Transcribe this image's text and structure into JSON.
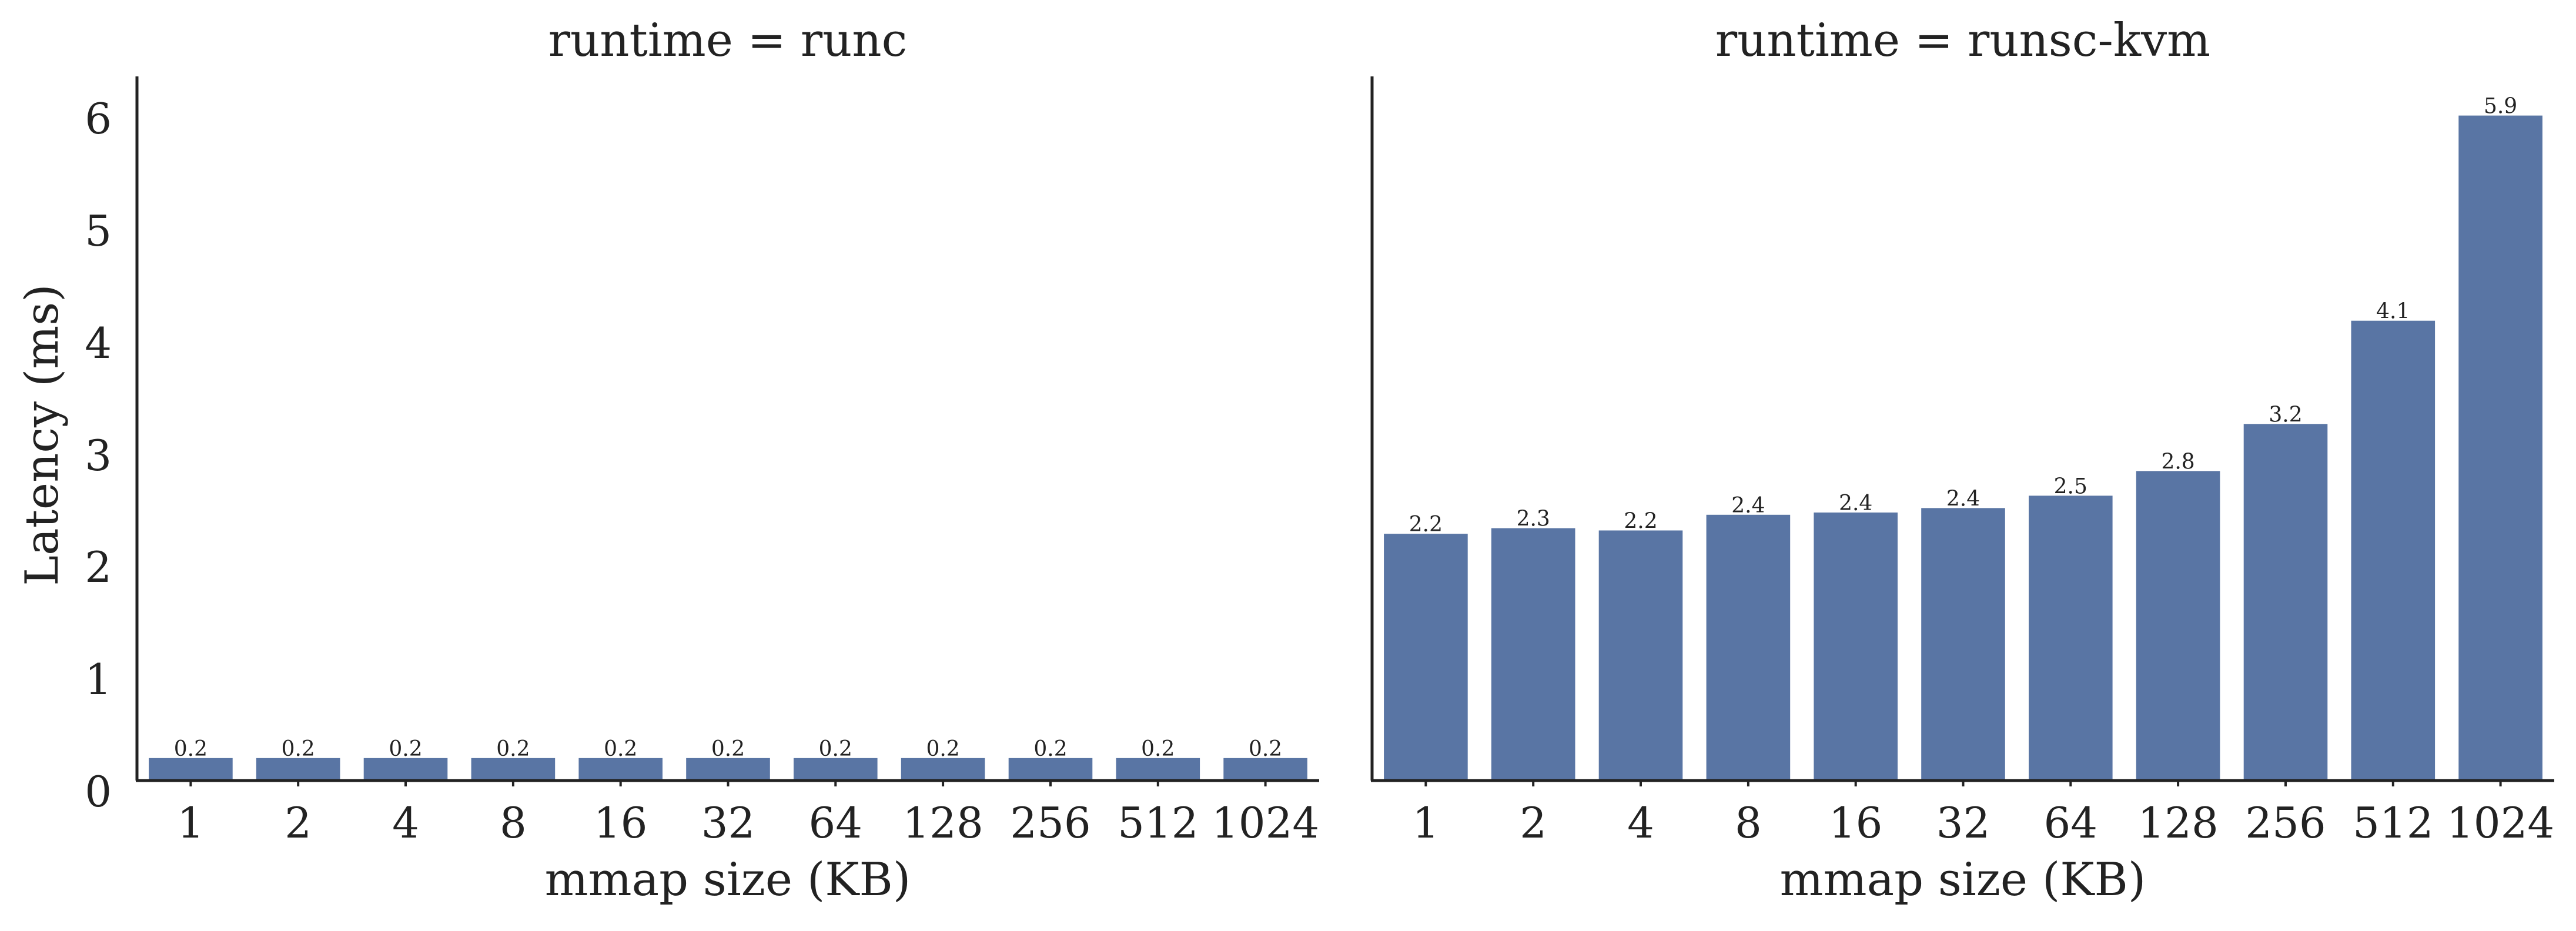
{
  "colors": {
    "bar": "#5975a4",
    "axis": "#222222",
    "text": "#222222"
  },
  "shared": {
    "xlabel": "mmap size (KB)",
    "ylabel": "Latency (ms)",
    "yticks": [
      "0",
      "1",
      "2",
      "3",
      "4",
      "5",
      "6"
    ]
  },
  "chart_data": [
    {
      "type": "bar",
      "title": "runtime = runc",
      "xlabel": "mmap size (KB)",
      "ylabel": "Latency (ms)",
      "ylim": [
        0,
        6.25
      ],
      "categories": [
        "1",
        "2",
        "4",
        "8",
        "16",
        "32",
        "64",
        "128",
        "256",
        "512",
        "1024"
      ],
      "values": [
        0.2,
        0.2,
        0.2,
        0.2,
        0.2,
        0.2,
        0.2,
        0.2,
        0.2,
        0.2,
        0.2
      ],
      "data_labels": [
        "0.2",
        "0.2",
        "0.2",
        "0.2",
        "0.2",
        "0.2",
        "0.2",
        "0.2",
        "0.2",
        "0.2",
        "0.2"
      ],
      "grid": false
    },
    {
      "type": "bar",
      "title": "runtime = runsc-kvm",
      "xlabel": "mmap size (KB)",
      "ylabel": "",
      "ylim": [
        0,
        6.25
      ],
      "categories": [
        "1",
        "2",
        "4",
        "8",
        "16",
        "32",
        "64",
        "128",
        "256",
        "512",
        "1024"
      ],
      "values": [
        2.2,
        2.25,
        2.23,
        2.37,
        2.39,
        2.43,
        2.54,
        2.76,
        3.18,
        4.1,
        5.93
      ],
      "data_labels": [
        "2.2",
        "2.3",
        "2.2",
        "2.4",
        "2.4",
        "2.4",
        "2.5",
        "2.8",
        "3.2",
        "4.1",
        "5.9"
      ],
      "grid": false
    }
  ]
}
